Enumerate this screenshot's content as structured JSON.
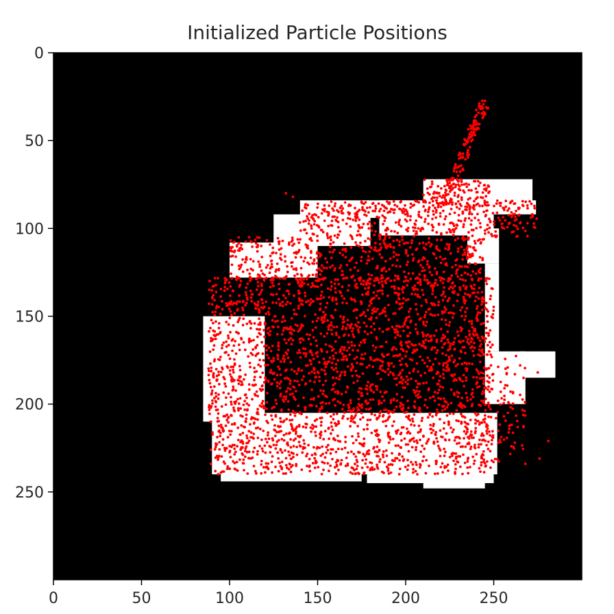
{
  "chart_data": {
    "type": "scatter",
    "title": "Initialized Particle Positions",
    "background_image": "occupancy-map",
    "xlim": [
      0,
      300
    ],
    "ylim": [
      300,
      0
    ],
    "xticks": [
      0,
      50,
      100,
      150,
      200,
      250
    ],
    "yticks": [
      0,
      50,
      100,
      150,
      200,
      250
    ],
    "xtick_labels": [
      "0",
      "50",
      "100",
      "150",
      "200",
      "250"
    ],
    "ytick_labels": [
      "0",
      "50",
      "100",
      "150",
      "200",
      "250"
    ],
    "grid": false,
    "colors": {
      "map_background": "#000000",
      "free_space": "#ffffff",
      "particles": "#ff0000",
      "axes": "#000000"
    },
    "free_space_regions": [
      [
        88,
        130,
        143,
        110
      ],
      [
        100,
        108,
        150,
        128
      ],
      [
        125,
        92,
        180,
        110
      ],
      [
        140,
        84,
        200,
        94
      ],
      [
        185,
        84,
        250,
        104
      ],
      [
        210,
        72,
        272,
        86
      ],
      [
        245,
        84,
        274,
        92
      ],
      [
        235,
        100,
        253,
        120
      ],
      [
        245,
        120,
        253,
        170
      ],
      [
        245,
        170,
        268,
        200
      ],
      [
        265,
        170,
        285,
        185
      ],
      [
        85,
        150,
        120,
        210
      ],
      [
        90,
        205,
        252,
        240
      ],
      [
        95,
        238,
        175,
        244
      ],
      [
        178,
        238,
        250,
        245
      ],
      [
        210,
        238,
        245,
        248
      ]
    ],
    "particle_regions": [
      {
        "x": [
          88,
          250
        ],
        "y": [
          128,
          240
        ],
        "count": 2600
      },
      {
        "x": [
          100,
          245
        ],
        "y": [
          105,
          130
        ],
        "count": 500
      },
      {
        "x": [
          140,
          275
        ],
        "y": [
          84,
          105
        ],
        "count": 450
      },
      {
        "x": [
          210,
          248
        ],
        "y": [
          72,
          90
        ],
        "count": 120
      },
      {
        "x": [
          243,
          268
        ],
        "y": [
          170,
          235
        ],
        "count": 90
      }
    ],
    "particle_streak": {
      "from": [
        222,
        85
      ],
      "to": [
        245,
        28
      ],
      "count": 140
    },
    "particle_outliers": [
      [
        281,
        221
      ],
      [
        276,
        231
      ],
      [
        265,
        178
      ],
      [
        275,
        182
      ],
      [
        258,
        205
      ],
      [
        262,
        222
      ],
      [
        132,
        80
      ],
      [
        136,
        82
      ]
    ]
  }
}
